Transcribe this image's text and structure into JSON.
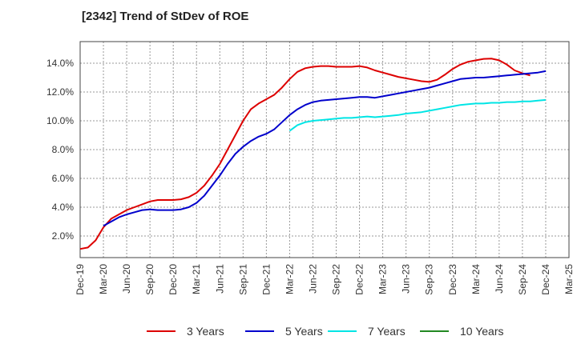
{
  "title": "[2342]  Trend of StDev of ROE",
  "chart_data": {
    "type": "line",
    "title": "[2342]  Trend of StDev of ROE",
    "xlabel": "",
    "ylabel": "",
    "x_ticks": [
      "Dec-19",
      "Mar-20",
      "Jun-20",
      "Sep-20",
      "Dec-20",
      "Mar-21",
      "Jun-21",
      "Sep-21",
      "Dec-21",
      "Mar-22",
      "Jun-22",
      "Sep-22",
      "Dec-22",
      "Mar-23",
      "Jun-23",
      "Sep-23",
      "Dec-23",
      "Mar-24",
      "Jun-24",
      "Sep-24",
      "Dec-24",
      "Mar-25"
    ],
    "y_ticks": [
      "2.0%",
      "4.0%",
      "6.0%",
      "8.0%",
      "10.0%",
      "12.0%",
      "14.0%"
    ],
    "y_tick_values": [
      2,
      4,
      6,
      8,
      10,
      12,
      14
    ],
    "ylim": [
      0.5,
      15.5
    ],
    "grid": true,
    "legend_position": "bottom",
    "series": [
      {
        "name": "3 Years",
        "color": "#dd0000",
        "start_month_index": 0,
        "values": [
          1.1,
          1.2,
          1.7,
          2.6,
          3.2,
          3.5,
          3.8,
          4.0,
          4.2,
          4.4,
          4.5,
          4.5,
          4.5,
          4.55,
          4.7,
          5.0,
          5.5,
          6.2,
          7.0,
          8.0,
          9.0,
          10.0,
          10.8,
          11.2,
          11.5,
          11.8,
          12.3,
          12.9,
          13.4,
          13.65,
          13.75,
          13.8,
          13.8,
          13.75,
          13.75,
          13.75,
          13.8,
          13.7,
          13.5,
          13.35,
          13.2,
          13.05,
          12.95,
          12.85,
          12.75,
          12.7,
          12.85,
          13.2,
          13.6,
          13.9,
          14.1,
          14.2,
          14.3,
          14.32,
          14.2,
          13.9,
          13.5,
          13.3,
          13.15
        ]
      },
      {
        "name": "5 Years",
        "color": "#0000cc",
        "start_month_index": 3,
        "values": [
          2.7,
          3.0,
          3.3,
          3.5,
          3.65,
          3.8,
          3.85,
          3.8,
          3.8,
          3.8,
          3.85,
          4.0,
          4.3,
          4.8,
          5.5,
          6.2,
          7.0,
          7.7,
          8.2,
          8.6,
          8.9,
          9.1,
          9.4,
          9.9,
          10.4,
          10.8,
          11.1,
          11.3,
          11.4,
          11.45,
          11.5,
          11.55,
          11.6,
          11.65,
          11.65,
          11.6,
          11.7,
          11.8,
          11.9,
          12.0,
          12.1,
          12.2,
          12.3,
          12.45,
          12.6,
          12.75,
          12.9,
          12.95,
          13.0,
          13.0,
          13.05,
          13.1,
          13.15,
          13.2,
          13.25,
          13.3,
          13.35,
          13.45
        ]
      },
      {
        "name": "7 Years",
        "color": "#00e5e5",
        "start_month_index": 27,
        "values": [
          9.3,
          9.7,
          9.9,
          10.0,
          10.05,
          10.1,
          10.15,
          10.2,
          10.2,
          10.25,
          10.3,
          10.25,
          10.3,
          10.35,
          10.4,
          10.5,
          10.55,
          10.6,
          10.7,
          10.8,
          10.9,
          11.0,
          11.1,
          11.15,
          11.2,
          11.2,
          11.25,
          11.25,
          11.3,
          11.3,
          11.35,
          11.35,
          11.4,
          11.45
        ]
      },
      {
        "name": "10 Years",
        "color": "#228822",
        "start_month_index": 0,
        "values": []
      }
    ]
  }
}
